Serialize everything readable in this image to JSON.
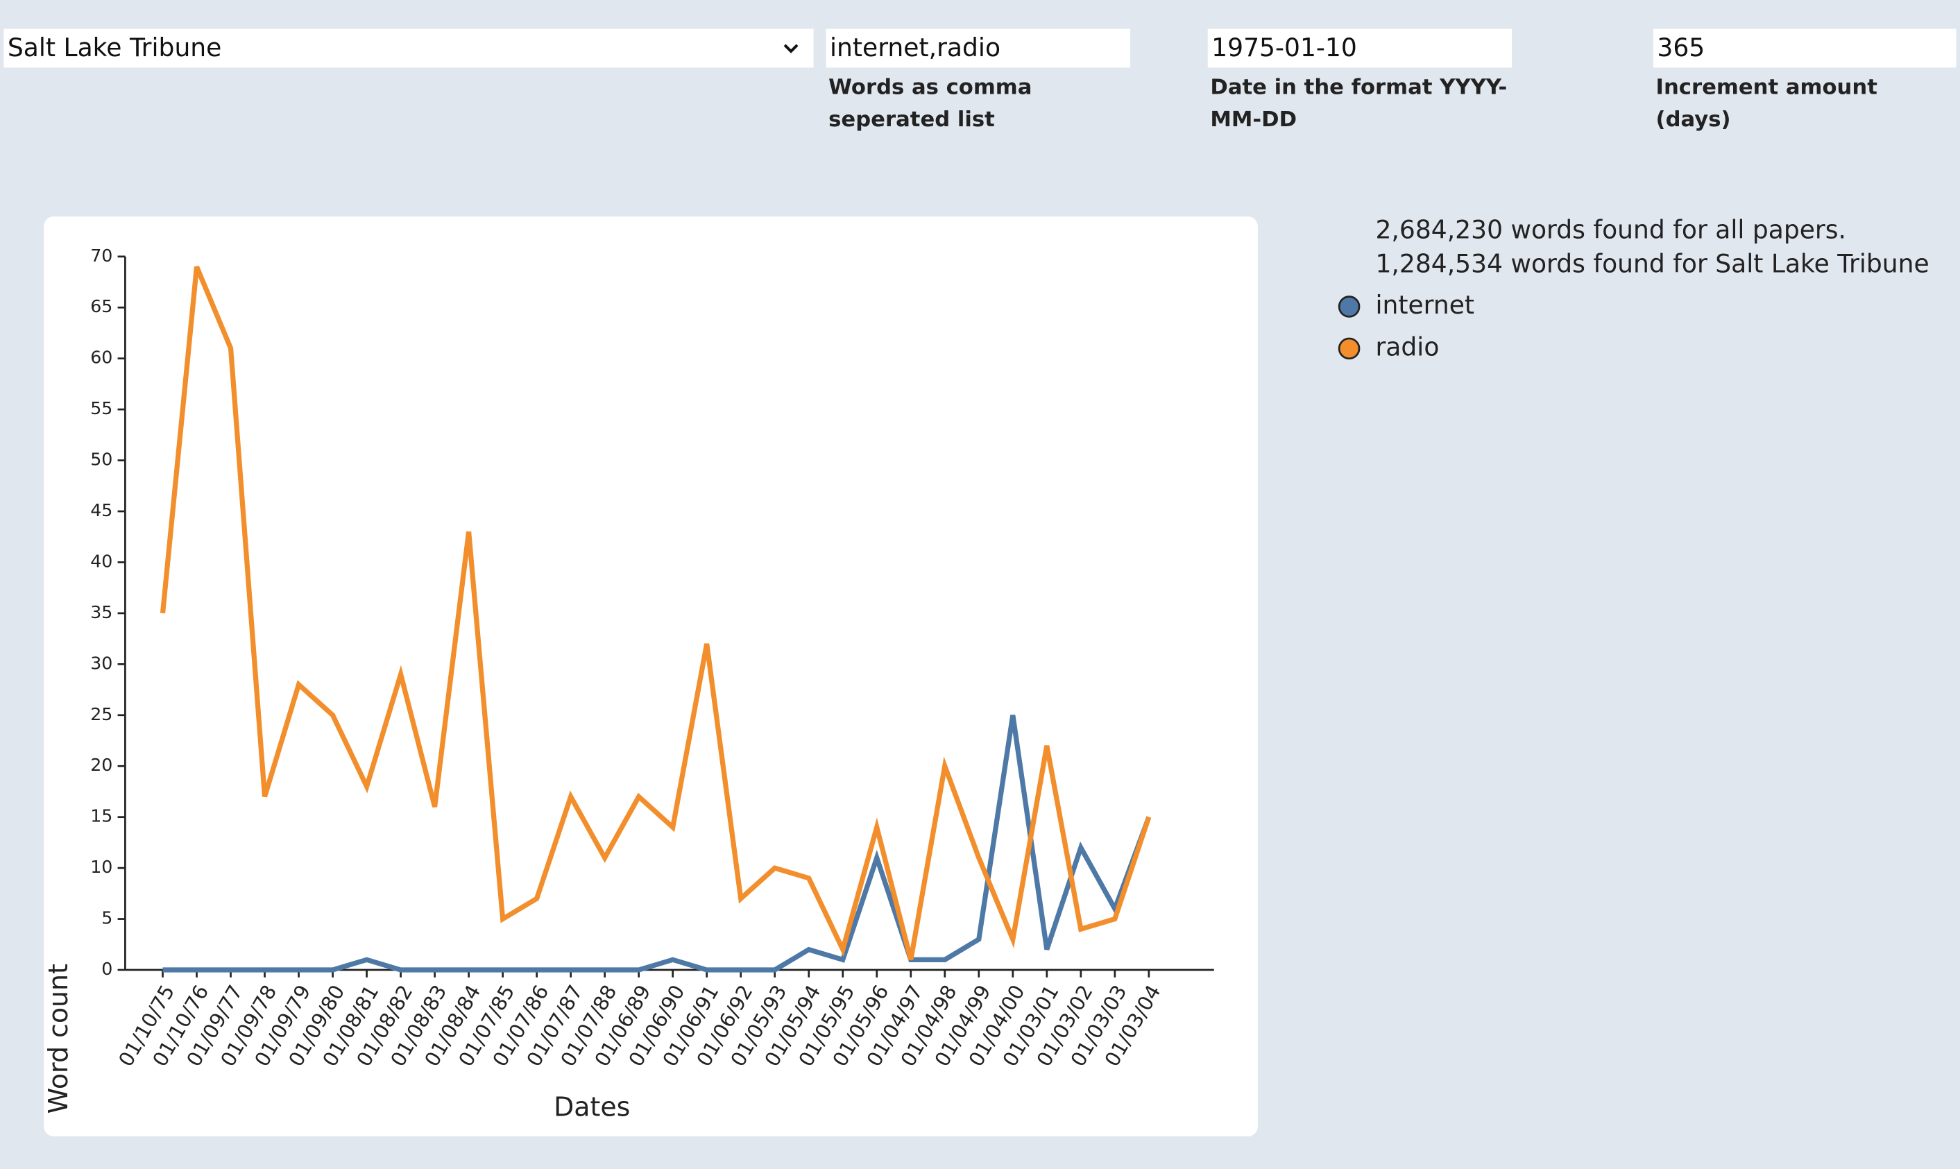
{
  "form": {
    "paper": "Salt Lake Tribune",
    "words": {
      "value": "internet,radio",
      "label": "Words as comma seperated list"
    },
    "date": {
      "value": "1975-01-10",
      "label": "Date in the format YYYY-MM-DD"
    },
    "increment": {
      "value": "365",
      "label": "Increment amount (days)"
    }
  },
  "stats": [
    "2,684,230 words found for all papers.",
    "1,284,534 words found for Salt Lake Tribune"
  ],
  "chart_data": {
    "type": "line",
    "x_label": "Dates",
    "y_label": "Word count",
    "categories": [
      "01/10/75",
      "01/10/76",
      "01/09/77",
      "01/09/78",
      "01/09/79",
      "01/09/80",
      "01/08/81",
      "01/08/82",
      "01/08/83",
      "01/08/84",
      "01/07/85",
      "01/07/86",
      "01/07/87",
      "01/07/88",
      "01/06/89",
      "01/06/90",
      "01/06/91",
      "01/06/92",
      "01/05/93",
      "01/05/94",
      "01/05/95",
      "01/05/96",
      "01/04/97",
      "01/04/98",
      "01/04/99",
      "01/04/00",
      "01/03/01",
      "01/03/02",
      "01/03/03",
      "01/03/04"
    ],
    "series": [
      {
        "name": "internet",
        "color": "#4e79a7",
        "values": [
          0,
          0,
          0,
          0,
          0,
          0,
          1,
          0,
          0,
          0,
          0,
          0,
          0,
          0,
          0,
          1,
          0,
          0,
          0,
          2,
          1,
          11,
          1,
          1,
          3,
          25,
          2,
          12,
          6,
          15
        ]
      },
      {
        "name": "radio",
        "color": "#f28e2b",
        "values": [
          35,
          69,
          61,
          17,
          28,
          25,
          18,
          29,
          16,
          43,
          5,
          7,
          17,
          11,
          17,
          14,
          32,
          7,
          10,
          9,
          2,
          14,
          1,
          20,
          11,
          3,
          22,
          4,
          5,
          15
        ]
      }
    ],
    "ylim": [
      0,
      70
    ],
    "yticks": [
      0,
      5,
      10,
      15,
      20,
      25,
      30,
      35,
      40,
      45,
      50,
      55,
      60,
      65,
      70
    ],
    "grid": false
  }
}
